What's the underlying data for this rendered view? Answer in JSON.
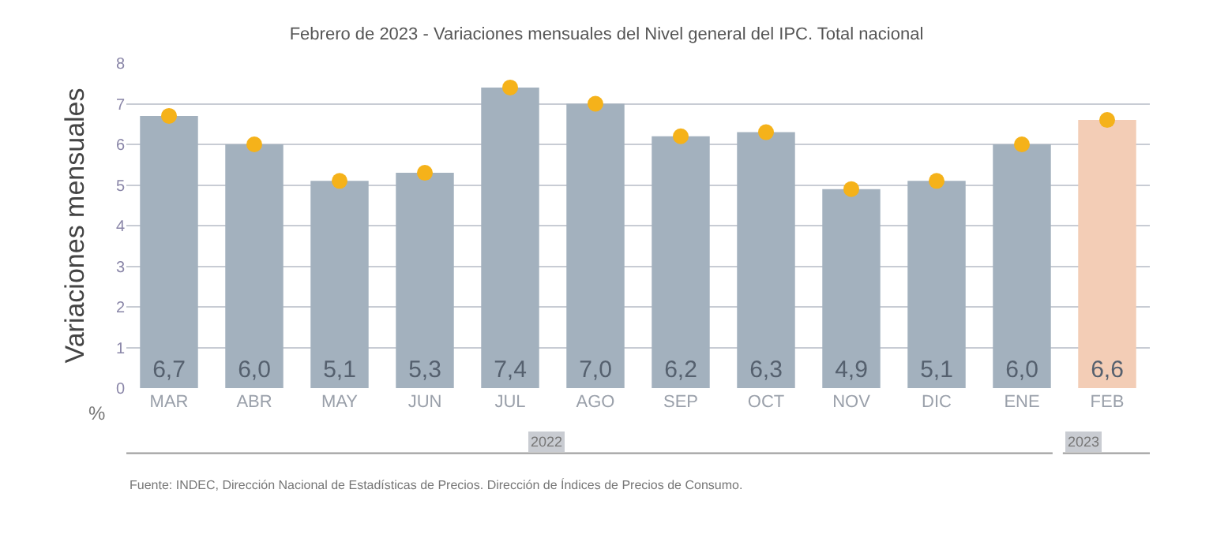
{
  "chart_data": {
    "type": "bar",
    "title": "Febrero de 2023 - Variaciones mensuales del Nivel general del IPC. Total nacional",
    "ylabel": "Variaciones mensuales",
    "categories": [
      "MAR",
      "ABR",
      "MAY",
      "JUN",
      "JUL",
      "AGO",
      "SEP",
      "OCT",
      "NOV",
      "DIC",
      "ENE",
      "FEB"
    ],
    "series": [
      {
        "values": [
          6.7,
          6.0,
          5.1,
          5.3,
          7.4,
          7.0,
          6.2,
          6.3,
          4.9,
          5.1,
          6.0,
          6.6
        ],
        "value_labels": [
          "6,7",
          "6,0",
          "5,1",
          "5,3",
          "7,4",
          "7,0",
          "6,2",
          "6,3",
          "4,9",
          "5,1",
          "6,0",
          "6,6"
        ],
        "colors": [
          "#a3b1be",
          "#a3b1be",
          "#a3b1be",
          "#a3b1be",
          "#a3b1be",
          "#a3b1be",
          "#a3b1be",
          "#a3b1be",
          "#a3b1be",
          "#a3b1be",
          "#a3b1be",
          "#f3cdb6"
        ]
      },
      {
        "type": "scatter",
        "color": "#f5b21a",
        "x": [
          "MAR",
          "ABR",
          "MAY",
          "JUN",
          "JUL",
          "AGO",
          "SEP",
          "OCT",
          "NOV",
          "DIC",
          "ENE",
          "FEB"
        ],
        "values": [
          6.7,
          6.0,
          5.1,
          5.3,
          7.4,
          7.0,
          6.2,
          6.3,
          4.9,
          5.1,
          6.0,
          6.6
        ]
      }
    ],
    "ylim": [
      0,
      8
    ],
    "yticks": [
      0,
      1,
      2,
      3,
      4,
      5,
      6,
      7,
      8
    ],
    "grid": "y",
    "marker": "circle",
    "annotations": [
      "%",
      "2022",
      "2023",
      "Fuente: INDEC, Dirección Nacional de Estadísticas de Precios. Dirección de Índices de Precios de Consumo."
    ]
  }
}
